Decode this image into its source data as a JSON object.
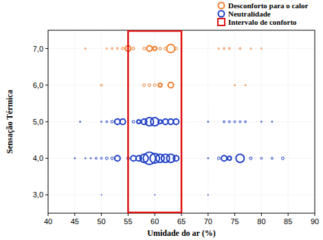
{
  "chart_data": {
    "type": "scatter",
    "xlabel": "Umidade do ar (%)",
    "ylabel": "Sensação Térmica",
    "xlim": [
      40,
      90
    ],
    "ylim": [
      2.5,
      7.5
    ],
    "xticks": [
      40,
      45,
      50,
      55,
      60,
      65,
      70,
      75,
      80,
      85,
      90
    ],
    "yticks": [
      {
        "value": 3,
        "label": "3,0"
      },
      {
        "value": 4,
        "label": "4,0"
      },
      {
        "value": 5,
        "label": "5,0"
      },
      {
        "value": 6,
        "label": "6,0"
      },
      {
        "value": 7,
        "label": "7,0"
      }
    ],
    "grid": true,
    "legend": "upper right",
    "series": [
      {
        "name": "Desconforto para o calor",
        "color": "#f07d2c",
        "marker": "open-circle",
        "x": [
          47,
          51,
          52,
          53,
          54,
          55,
          56,
          58,
          59,
          60,
          61,
          62,
          63,
          64,
          72,
          73,
          74,
          76,
          78,
          80,
          50,
          55,
          58,
          59,
          60,
          61,
          63,
          75,
          77
        ],
        "values": [
          7,
          7,
          7,
          7,
          7,
          7,
          7,
          7,
          7,
          7,
          7,
          7,
          7,
          7,
          7,
          7,
          7,
          7,
          7,
          7,
          6,
          6,
          6,
          6,
          6,
          6,
          6,
          6,
          6
        ],
        "sizes": [
          0.25,
          0.25,
          0.5,
          0.5,
          1,
          4,
          1,
          1,
          4,
          2,
          1,
          1,
          9,
          1,
          0.25,
          0.5,
          0.5,
          0.5,
          0.25,
          0.25,
          0.5,
          0.25,
          1,
          1,
          1,
          2,
          4,
          0.25,
          0.25
        ]
      },
      {
        "name": "Neutralidade",
        "color": "#1f3fc4",
        "marker": "open-circle",
        "x": [
          46,
          50,
          51,
          52,
          53,
          54,
          56,
          57,
          58,
          59,
          60,
          61,
          62,
          63,
          64,
          70,
          73,
          74,
          75,
          76,
          77,
          80,
          82,
          45,
          47,
          48,
          49,
          50,
          51,
          52,
          53,
          55,
          56,
          57,
          58,
          59,
          60,
          61,
          62,
          63,
          64,
          70,
          72,
          73,
          74,
          76,
          78,
          80,
          82,
          84,
          50,
          55,
          60,
          65,
          70
        ],
        "values": [
          5,
          5,
          5,
          5,
          5,
          5,
          5,
          5,
          5,
          5,
          5,
          5,
          5,
          5,
          5,
          5,
          5,
          5,
          5,
          5,
          5,
          5,
          5,
          4,
          4,
          4,
          4,
          4,
          4,
          4,
          4,
          4,
          4,
          4,
          4,
          4,
          4,
          4,
          4,
          4,
          4,
          4,
          4,
          4,
          4,
          4,
          4,
          4,
          4,
          4,
          3,
          3,
          3,
          3,
          3
        ],
        "sizes": [
          0.25,
          0.25,
          0.5,
          1,
          4,
          4,
          1,
          2,
          4,
          9,
          9,
          2,
          4,
          4,
          4,
          0.25,
          0.5,
          0.5,
          0.5,
          0.5,
          0.5,
          0.25,
          0.25,
          0.25,
          0.25,
          0.25,
          0.5,
          0.5,
          1,
          1,
          4,
          1,
          4,
          4,
          9,
          20,
          12,
          9,
          9,
          9,
          4,
          0.25,
          1,
          4,
          2,
          9,
          1,
          0.5,
          0.5,
          1,
          0.1,
          0.1,
          0.1,
          0.1,
          0.1
        ]
      }
    ],
    "comfort_interval": {
      "name": "Intervalo de conforto",
      "color": "#e01010",
      "x": [
        55,
        65
      ]
    }
  }
}
